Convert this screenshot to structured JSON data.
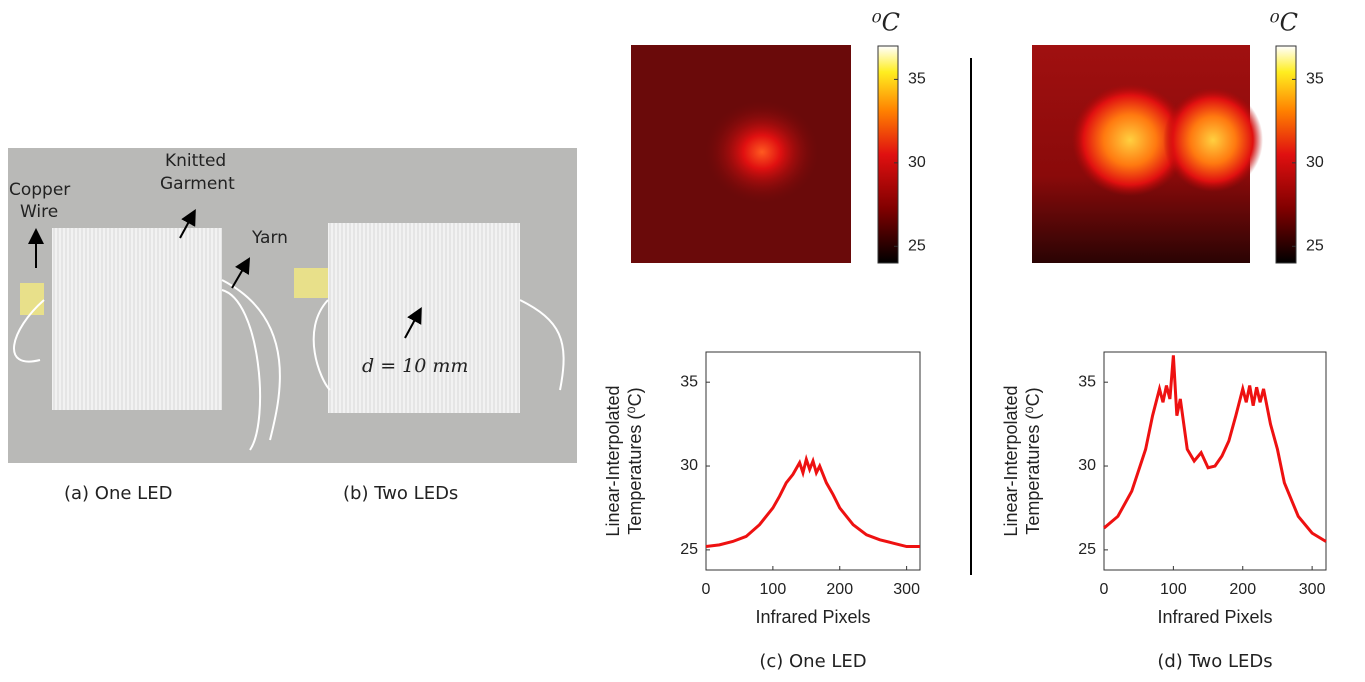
{
  "photo": {
    "copper_wire": [
      "Copper",
      "Wire"
    ],
    "knitted_garment": [
      "Knitted",
      "Garment"
    ],
    "yarn": "Yarn",
    "distance": "d = 10 mm",
    "captions": [
      "(a) One LED",
      "(b) Two LEDs"
    ]
  },
  "chart_data": [
    {
      "type": "line",
      "caption": "(c) One LED",
      "xlabel": "Infrared Pixels",
      "ylabel": [
        "Linear-Interpolated",
        "Temperatures (⁰C)"
      ],
      "xlim": [
        0,
        320
      ],
      "ylim": [
        23.8,
        36.8
      ],
      "xticks": [
        0,
        100,
        200,
        300
      ],
      "yticks": [
        25,
        30,
        35
      ],
      "colorbar": {
        "label": "⁰C",
        "lim": [
          24,
          37
        ],
        "ticks": [
          25,
          30,
          35
        ]
      },
      "x": [
        0,
        20,
        40,
        60,
        80,
        100,
        110,
        120,
        130,
        140,
        145,
        150,
        155,
        160,
        165,
        170,
        180,
        190,
        200,
        220,
        240,
        260,
        280,
        300,
        320
      ],
      "series": [
        {
          "color": "#ee1111",
          "values": [
            25.2,
            25.3,
            25.5,
            25.8,
            26.5,
            27.5,
            28.2,
            29,
            29.5,
            30.2,
            29.6,
            30.4,
            29.8,
            30.3,
            29.6,
            30,
            29,
            28.3,
            27.5,
            26.5,
            25.9,
            25.6,
            25.4,
            25.2,
            25.2
          ]
        }
      ]
    },
    {
      "type": "line",
      "caption": "(d) Two LEDs",
      "xlabel": "Infrared Pixels",
      "ylabel": [
        "Linear-Interpolated",
        "Temperatures (⁰C)"
      ],
      "xlim": [
        0,
        320
      ],
      "ylim": [
        23.8,
        36.8
      ],
      "xticks": [
        0,
        100,
        200,
        300
      ],
      "yticks": [
        25,
        30,
        35
      ],
      "colorbar": {
        "label": "⁰C",
        "lim": [
          24,
          37
        ],
        "ticks": [
          25,
          30,
          35
        ]
      },
      "x": [
        0,
        20,
        40,
        60,
        70,
        80,
        85,
        90,
        95,
        100,
        105,
        110,
        115,
        120,
        130,
        140,
        150,
        160,
        170,
        180,
        190,
        200,
        205,
        210,
        215,
        220,
        225,
        230,
        240,
        250,
        260,
        280,
        300,
        320
      ],
      "series": [
        {
          "color": "#ee1111",
          "values": [
            26.3,
            27,
            28.5,
            31,
            33,
            34.6,
            33.8,
            34.8,
            34,
            36.6,
            33,
            34,
            32.5,
            31,
            30.3,
            30.8,
            29.9,
            30,
            30.6,
            31.5,
            33,
            34.6,
            33.8,
            34.8,
            33.6,
            34.7,
            33.8,
            34.6,
            32.5,
            31,
            29,
            27,
            26,
            25.5
          ]
        }
      ]
    }
  ]
}
